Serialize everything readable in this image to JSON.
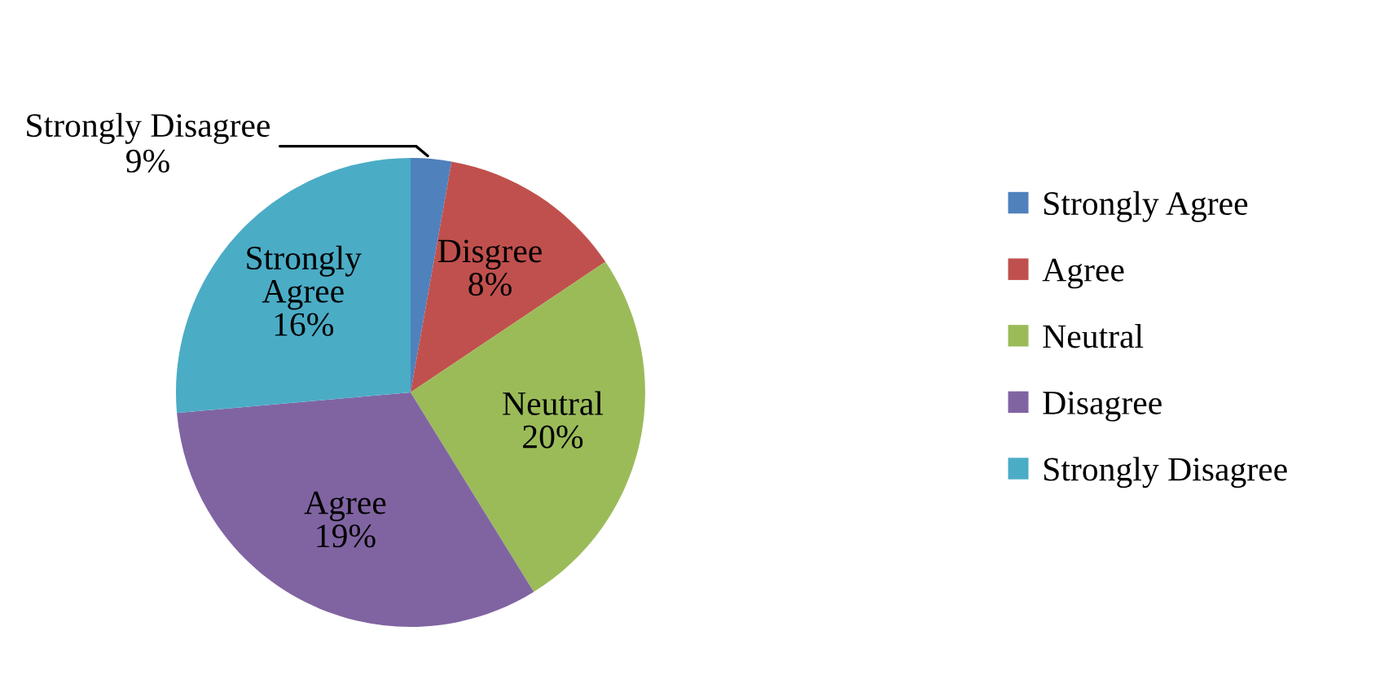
{
  "chart_data": {
    "type": "pie",
    "categories": [
      "Strongly Agree",
      "Agree",
      "Neutral",
      "Disagree",
      "Strongly Disagree"
    ],
    "values": [
      2.8,
      12.8,
      25.6,
      32.4,
      26.4
    ],
    "colors": [
      "#4f81bd",
      "#c0504d",
      "#9bbb59",
      "#8064a2",
      "#4bacc6"
    ],
    "value_labels": [
      "Strongly Disagree\n9%",
      "Disgree\n8%",
      "Neutral\n20%",
      "Agree\n19%",
      "Strongly\nAgree\n16%"
    ],
    "legend": "right"
  }
}
